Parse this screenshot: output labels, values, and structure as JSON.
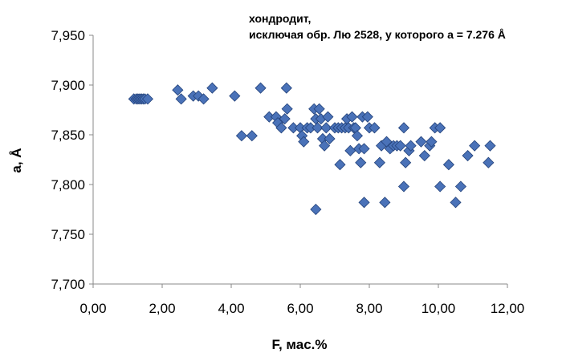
{
  "chart_data": {
    "type": "scatter",
    "title": "",
    "annotation_lines": [
      "хондродит,",
      "исключая обр. Лю 2528,  у которого а = 7.276 Å"
    ],
    "xlabel": "F, мас.%",
    "ylabel": "a, Å",
    "xlim": [
      0,
      12
    ],
    "ylim": [
      7.7,
      7.95
    ],
    "x_ticks": [
      "0,00",
      "2,00",
      "4,00",
      "6,00",
      "8,00",
      "10,00",
      "12,00"
    ],
    "y_ticks": [
      "7,700",
      "7,750",
      "7,800",
      "7,850",
      "7,900",
      "7,950"
    ],
    "grid": false,
    "marker": "diamond",
    "marker_color": "#4a72b8",
    "marker_edge": "#23427a",
    "points": [
      [
        1.18,
        7.886
      ],
      [
        1.25,
        7.886
      ],
      [
        1.3,
        7.886
      ],
      [
        1.35,
        7.886
      ],
      [
        1.4,
        7.886
      ],
      [
        1.45,
        7.886
      ],
      [
        1.5,
        7.886
      ],
      [
        1.58,
        7.886
      ],
      [
        2.45,
        7.895
      ],
      [
        2.55,
        7.886
      ],
      [
        2.9,
        7.889
      ],
      [
        3.05,
        7.889
      ],
      [
        3.2,
        7.886
      ],
      [
        3.45,
        7.897
      ],
      [
        4.1,
        7.889
      ],
      [
        4.85,
        7.897
      ],
      [
        5.6,
        7.897
      ],
      [
        4.3,
        7.849
      ],
      [
        4.6,
        7.849
      ],
      [
        5.1,
        7.868
      ],
      [
        5.3,
        7.868
      ],
      [
        5.35,
        7.862
      ],
      [
        5.45,
        7.857
      ],
      [
        5.55,
        7.866
      ],
      [
        5.62,
        7.876
      ],
      [
        5.8,
        7.857
      ],
      [
        6.0,
        7.857
      ],
      [
        6.05,
        7.849
      ],
      [
        6.1,
        7.843
      ],
      [
        6.2,
        7.857
      ],
      [
        6.3,
        7.857
      ],
      [
        6.4,
        7.876
      ],
      [
        6.45,
        7.866
      ],
      [
        6.5,
        7.857
      ],
      [
        6.55,
        7.876
      ],
      [
        6.6,
        7.866
      ],
      [
        6.65,
        7.846
      ],
      [
        6.7,
        7.839
      ],
      [
        6.75,
        7.857
      ],
      [
        6.8,
        7.868
      ],
      [
        6.85,
        7.846
      ],
      [
        7.0,
        7.857
      ],
      [
        7.1,
        7.857
      ],
      [
        7.2,
        7.857
      ],
      [
        7.3,
        7.857
      ],
      [
        7.35,
        7.866
      ],
      [
        7.4,
        7.857
      ],
      [
        7.45,
        7.834
      ],
      [
        7.5,
        7.868
      ],
      [
        7.55,
        7.857
      ],
      [
        7.6,
        7.857
      ],
      [
        7.65,
        7.849
      ],
      [
        7.7,
        7.836
      ],
      [
        7.75,
        7.822
      ],
      [
        7.8,
        7.868
      ],
      [
        7.85,
        7.836
      ],
      [
        7.95,
        7.868
      ],
      [
        8.0,
        7.857
      ],
      [
        8.15,
        7.857
      ],
      [
        8.3,
        7.822
      ],
      [
        8.35,
        7.839
      ],
      [
        8.5,
        7.843
      ],
      [
        8.6,
        7.836
      ],
      [
        8.7,
        7.839
      ],
      [
        8.8,
        7.839
      ],
      [
        8.9,
        7.839
      ],
      [
        9.0,
        7.857
      ],
      [
        9.05,
        7.822
      ],
      [
        9.15,
        7.834
      ],
      [
        9.2,
        7.839
      ],
      [
        9.5,
        7.843
      ],
      [
        9.6,
        7.829
      ],
      [
        9.75,
        7.839
      ],
      [
        9.8,
        7.843
      ],
      [
        9.9,
        7.857
      ],
      [
        10.05,
        7.857
      ],
      [
        10.3,
        7.82
      ],
      [
        10.85,
        7.829
      ],
      [
        11.05,
        7.839
      ],
      [
        11.45,
        7.822
      ],
      [
        11.5,
        7.839
      ],
      [
        7.15,
        7.82
      ],
      [
        6.45,
        7.775
      ],
      [
        7.85,
        7.782
      ],
      [
        8.45,
        7.782
      ],
      [
        9.0,
        7.798
      ],
      [
        10.05,
        7.798
      ],
      [
        10.5,
        7.782
      ],
      [
        10.65,
        7.798
      ]
    ]
  }
}
